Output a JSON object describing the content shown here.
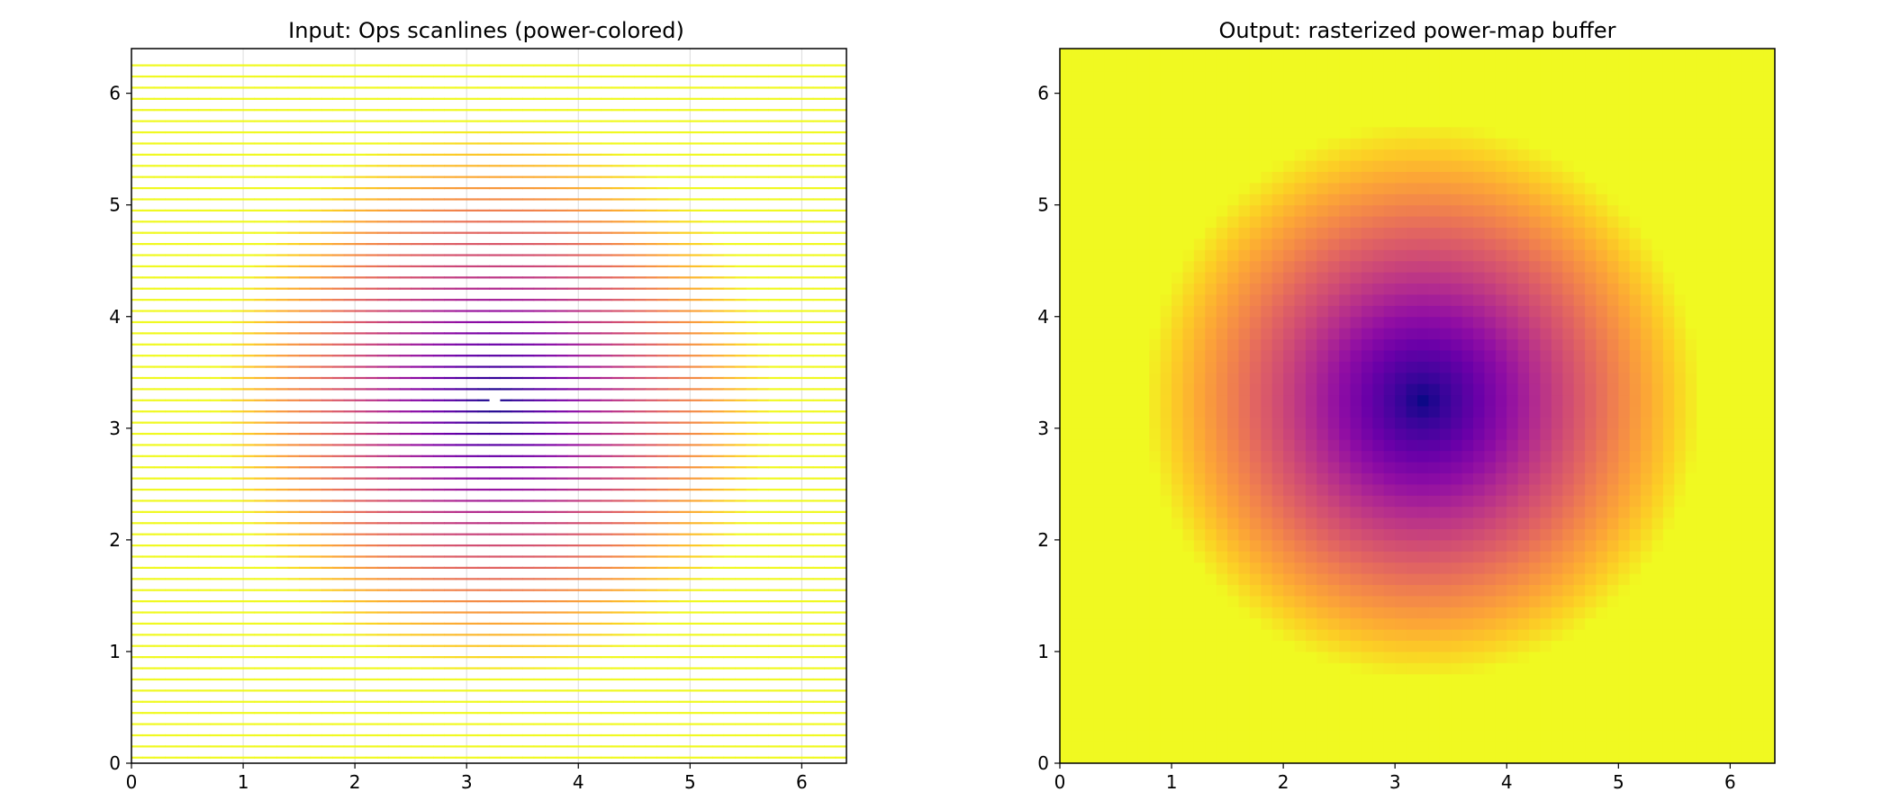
{
  "chart_data": [
    {
      "type": "scanlines",
      "title": "Input: Ops scanlines (power-colored)",
      "xlabel": "",
      "ylabel": "",
      "xlim": [
        0,
        6.4
      ],
      "ylim": [
        0,
        6.4
      ],
      "xticks": [
        "0",
        "1",
        "2",
        "3",
        "4",
        "5",
        "6"
      ],
      "yticks": [
        "0",
        "1",
        "2",
        "3",
        "4",
        "5",
        "6"
      ],
      "grid": true,
      "colormap": "plasma",
      "line_spacing": 0.1,
      "y_start": 0.05,
      "line_count": 63,
      "center": [
        3.25,
        3.25
      ],
      "power_model": "power = min(1, distance from center / 2.5)",
      "gap": {
        "y": 3.25,
        "x_range": [
          3.2,
          3.3
        ]
      }
    },
    {
      "type": "heatmap",
      "title": "Output: rasterized power-map buffer",
      "xlabel": "",
      "ylabel": "",
      "xlim": [
        0,
        6.4
      ],
      "ylim": [
        0,
        6.4
      ],
      "xticks": [
        "0",
        "1",
        "2",
        "3",
        "4",
        "5",
        "6"
      ],
      "yticks": [
        "0",
        "1",
        "2",
        "3",
        "4",
        "5",
        "6"
      ],
      "grid": false,
      "colormap": "plasma",
      "grid_size": [
        64,
        64
      ],
      "cell_size": 0.1,
      "center": [
        3.25,
        3.25
      ],
      "power_model": "power = min(1, distance from center / 2.5)"
    }
  ]
}
